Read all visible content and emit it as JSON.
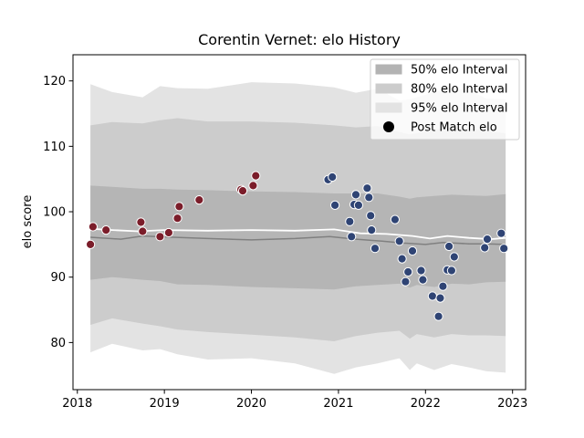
{
  "chart_data": {
    "type": "scatter",
    "title": "Corentin Vernet: elo History",
    "xlabel": "",
    "ylabel": "elo score",
    "xlim": [
      2017.95,
      2023.15
    ],
    "ylim": [
      72.8,
      124.0
    ],
    "x_ticks": [
      2018,
      2019,
      2020,
      2021,
      2022,
      2023
    ],
    "x_tick_labels": [
      "2018",
      "2019",
      "2020",
      "2021",
      "2022",
      "2023"
    ],
    "y_ticks": [
      80,
      90,
      100,
      110,
      120
    ],
    "y_tick_labels": [
      "80",
      "90",
      "100",
      "110",
      "120"
    ],
    "grid": false,
    "legend_position": "top-right",
    "legend": [
      {
        "label": "50% elo Interval",
        "kind": "band",
        "color": "#b3b3b3"
      },
      {
        "label": "80% elo Interval",
        "kind": "band",
        "color": "#cccccc"
      },
      {
        "label": "95% elo Interval",
        "kind": "band",
        "color": "#e3e3e3"
      },
      {
        "label": "Post Match elo",
        "kind": "marker",
        "color": "#000000"
      }
    ],
    "colors": {
      "band50": "#b5b5b5",
      "band80": "#cccccc",
      "band95": "#e3e3e3",
      "median_line": "#808080",
      "mean_line": "#ffffff",
      "points_early": "#7b1d2a",
      "points_late": "#2f4474"
    },
    "bands": {
      "x": [
        2018.15,
        2018.4,
        2018.75,
        2018.95,
        2019.15,
        2019.5,
        2020.0,
        2020.5,
        2020.95,
        2021.2,
        2021.45,
        2021.7,
        2021.82,
        2021.9,
        2022.1,
        2022.3,
        2022.5,
        2022.7,
        2022.92
      ],
      "upper95": [
        119.5,
        118.3,
        117.5,
        119.2,
        118.9,
        118.8,
        119.8,
        119.6,
        119.0,
        118.2,
        118.8,
        117.0,
        117.2,
        117.5,
        118.3,
        118.9,
        118.5,
        117.3,
        117.2
      ],
      "lower95": [
        78.5,
        79.8,
        78.8,
        79.0,
        78.2,
        77.4,
        77.6,
        76.8,
        75.2,
        76.2,
        76.8,
        77.6,
        75.8,
        76.8,
        75.8,
        76.7,
        76.2,
        75.6,
        75.4
      ],
      "upper80": [
        113.2,
        113.7,
        113.5,
        114.0,
        114.3,
        113.8,
        113.8,
        113.6,
        113.2,
        112.9,
        113.1,
        112.2,
        111.8,
        112.0,
        112.5,
        113.0,
        112.8,
        112.3,
        112.0
      ],
      "lower80": [
        82.7,
        83.7,
        82.9,
        82.5,
        82.0,
        81.6,
        81.2,
        80.8,
        80.2,
        81.0,
        81.5,
        81.8,
        80.6,
        81.3,
        80.8,
        81.3,
        81.1,
        81.1,
        81.0
      ],
      "upper50": [
        104.0,
        103.8,
        103.5,
        103.5,
        103.4,
        103.3,
        103.1,
        103.0,
        102.8,
        102.8,
        102.8,
        102.3,
        102.0,
        102.2,
        102.4,
        102.6,
        102.5,
        102.4,
        102.7
      ],
      "lower50": [
        89.6,
        90.0,
        89.6,
        89.4,
        88.9,
        88.8,
        88.5,
        88.3,
        88.1,
        88.6,
        88.8,
        89.0,
        88.4,
        88.8,
        88.5,
        89.0,
        88.9,
        89.2,
        89.3
      ]
    },
    "median_line": {
      "x": [
        2018.15,
        2018.5,
        2018.75,
        2019.1,
        2019.5,
        2020.0,
        2020.5,
        2020.9,
        2021.2,
        2021.5,
        2021.75,
        2022.0,
        2022.2,
        2022.5,
        2022.7,
        2022.92
      ],
      "y": [
        96.1,
        95.8,
        96.3,
        96.1,
        95.9,
        95.7,
        95.9,
        96.2,
        95.8,
        95.5,
        95.2,
        95.0,
        95.3,
        95.1,
        95.1,
        95.0
      ]
    },
    "mean_line": {
      "x": [
        2018.15,
        2018.4,
        2018.7,
        2019.0,
        2019.5,
        2020.0,
        2020.5,
        2020.95,
        2021.25,
        2021.55,
        2021.85,
        2022.05,
        2022.25,
        2022.5,
        2022.75,
        2022.92
      ],
      "y": [
        97.4,
        97.2,
        97.0,
        97.2,
        97.1,
        97.2,
        97.1,
        97.3,
        96.7,
        96.6,
        96.3,
        95.9,
        96.3,
        96.0,
        95.8,
        96.0
      ]
    },
    "points": {
      "early": {
        "x": [
          2018.15,
          2018.18,
          2018.33,
          2018.73,
          2018.75,
          2018.95,
          2019.05,
          2019.15,
          2019.17,
          2019.4,
          2019.88,
          2019.9,
          2020.02,
          2020.05
        ],
        "y": [
          95.0,
          97.7,
          97.2,
          98.4,
          97.0,
          96.2,
          96.8,
          99.0,
          100.8,
          101.8,
          103.4,
          103.2,
          104.0,
          105.5
        ]
      },
      "late": {
        "x": [
          2020.88,
          2020.93,
          2020.96,
          2021.13,
          2021.15,
          2021.18,
          2021.2,
          2021.23,
          2021.33,
          2021.35,
          2021.37,
          2021.38,
          2021.42,
          2021.65,
          2021.7,
          2021.73,
          2021.77,
          2021.8,
          2021.85,
          2021.95,
          2021.97,
          2022.08,
          2022.15,
          2022.17,
          2022.2,
          2022.25,
          2022.27,
          2022.3,
          2022.33,
          2022.68,
          2022.71,
          2022.87,
          2022.9
        ],
        "y": [
          104.9,
          105.3,
          101.0,
          98.5,
          96.2,
          101.1,
          102.6,
          101.0,
          103.6,
          102.2,
          99.4,
          97.2,
          94.4,
          98.8,
          95.5,
          92.8,
          89.3,
          90.8,
          94.0,
          91.0,
          89.6,
          87.1,
          84.0,
          86.8,
          88.6,
          91.1,
          94.7,
          91.0,
          93.1,
          94.5,
          95.8,
          96.7,
          94.4
        ]
      }
    }
  }
}
